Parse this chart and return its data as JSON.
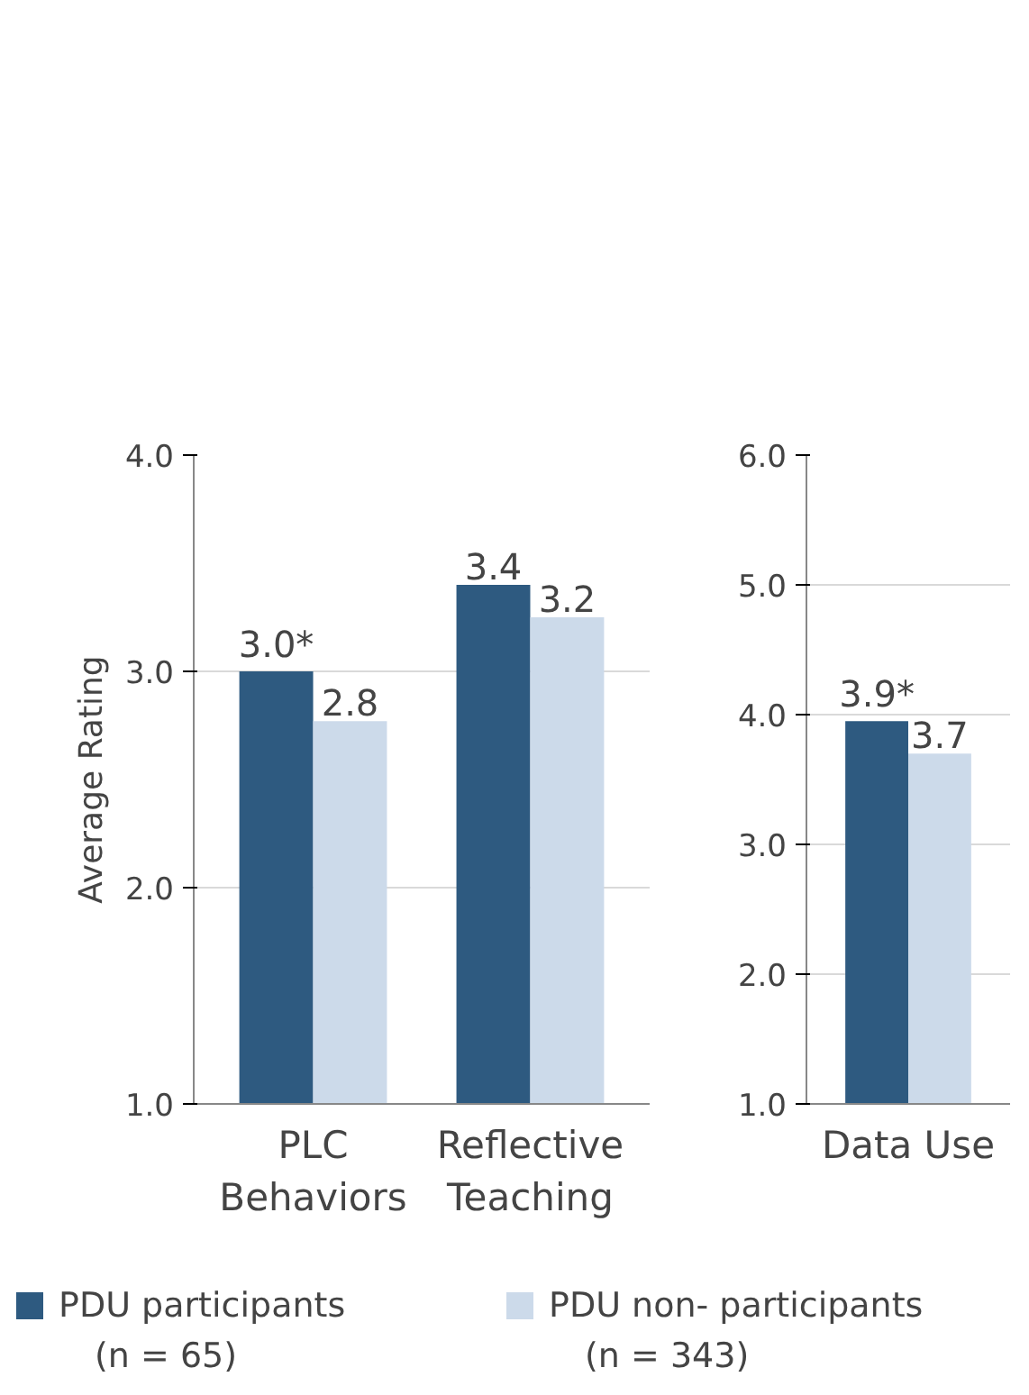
{
  "chart_data": [
    {
      "type": "bar",
      "ylabel": "Average Rating",
      "categories": [
        "PLC Behaviors",
        "Reflective Teaching"
      ],
      "ylim": [
        1,
        4
      ],
      "yticks": [
        {
          "value": 1,
          "label": "1.0"
        },
        {
          "value": 2,
          "label": "2.0"
        },
        {
          "value": 3,
          "label": "3.0"
        },
        {
          "value": 4,
          "label": "4.0"
        }
      ],
      "grid": "y",
      "legend": "bottom",
      "series": [
        {
          "name": "PDU participants (n = 65)",
          "color": "#2e5a80",
          "values": [
            3.0,
            3.4
          ],
          "value_labels": [
            "3.0*",
            "3.4"
          ]
        },
        {
          "name": "PDU non- participants (n = 343)",
          "color": "#ccdaea",
          "values": [
            2.77,
            3.25
          ],
          "value_labels": [
            "2.8",
            "3.2"
          ]
        }
      ]
    },
    {
      "type": "bar",
      "categories": [
        "Data Use"
      ],
      "ylim": [
        1,
        6
      ],
      "yticks": [
        {
          "value": 1,
          "label": "1.0"
        },
        {
          "value": 2,
          "label": "2.0"
        },
        {
          "value": 3,
          "label": "3.0"
        },
        {
          "value": 4,
          "label": "4.0"
        },
        {
          "value": 5,
          "label": "5.0"
        },
        {
          "value": 6,
          "label": "6.0"
        }
      ],
      "grid": "y",
      "series": [
        {
          "color": "#2e5a80",
          "values": [
            3.95
          ],
          "value_labels": [
            "3.9*"
          ]
        },
        {
          "color": "#ccdaea",
          "values": [
            3.7
          ],
          "value_labels": [
            "3.7"
          ]
        }
      ]
    }
  ]
}
